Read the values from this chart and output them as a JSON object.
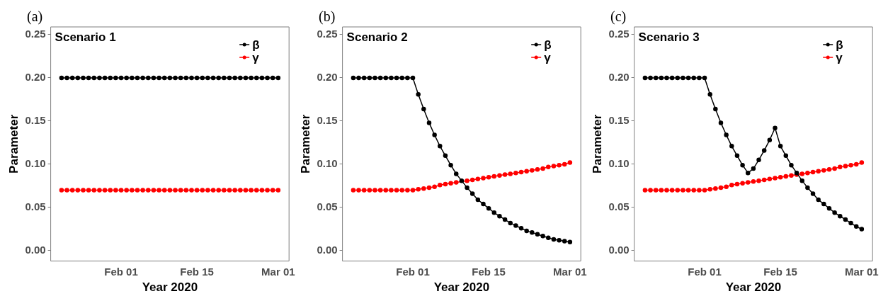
{
  "chart_data": [
    {
      "type": "line",
      "title": "Scenario 1",
      "annotations": [
        "(a)"
      ],
      "xlabel": "Year 2020",
      "ylabel": "Parameter",
      "legend": "top right",
      "grid": false,
      "marker": "circle",
      "line_style": "solid",
      "xlim": [
        "2020-01-19",
        "2020-03-03"
      ],
      "xticks": [
        {
          "value": "2020-02-01",
          "label": "Feb 01"
        },
        {
          "value": "2020-02-15",
          "label": "Feb 15"
        },
        {
          "value": "2020-03-01",
          "label": "Mar 01"
        }
      ],
      "ylim": [
        -0.012,
        0.259
      ],
      "yticks": [
        {
          "value": 0,
          "label": "0.00"
        },
        {
          "value": 0.05,
          "label": "0.05"
        },
        {
          "value": 0.1,
          "label": "0.10"
        },
        {
          "value": 0.15,
          "label": "0.15"
        },
        {
          "value": 0.2,
          "label": "0.20"
        },
        {
          "value": 0.25,
          "label": "0.25"
        }
      ],
      "x": [
        "2020-01-21",
        "2020-01-22",
        "2020-01-23",
        "2020-01-24",
        "2020-01-25",
        "2020-01-26",
        "2020-01-27",
        "2020-01-28",
        "2020-01-29",
        "2020-01-30",
        "2020-01-31",
        "2020-02-01",
        "2020-02-02",
        "2020-02-03",
        "2020-02-04",
        "2020-02-05",
        "2020-02-06",
        "2020-02-07",
        "2020-02-08",
        "2020-02-09",
        "2020-02-10",
        "2020-02-11",
        "2020-02-12",
        "2020-02-13",
        "2020-02-14",
        "2020-02-15",
        "2020-02-16",
        "2020-02-17",
        "2020-02-18",
        "2020-02-19",
        "2020-02-20",
        "2020-02-21",
        "2020-02-22",
        "2020-02-23",
        "2020-02-24",
        "2020-02-25",
        "2020-02-26",
        "2020-02-27",
        "2020-02-28",
        "2020-02-29",
        "2020-03-01"
      ],
      "series": [
        {
          "name": "β",
          "color": "#000000",
          "values": [
            0.2,
            0.2,
            0.2,
            0.2,
            0.2,
            0.2,
            0.2,
            0.2,
            0.2,
            0.2,
            0.2,
            0.2,
            0.2,
            0.2,
            0.2,
            0.2,
            0.2,
            0.2,
            0.2,
            0.2,
            0.2,
            0.2,
            0.2,
            0.2,
            0.2,
            0.2,
            0.2,
            0.2,
            0.2,
            0.2,
            0.2,
            0.2,
            0.2,
            0.2,
            0.2,
            0.2,
            0.2,
            0.2,
            0.2,
            0.2,
            0.2
          ]
        },
        {
          "name": "γ",
          "color": "#ff0000",
          "values": [
            0.07,
            0.07,
            0.07,
            0.07,
            0.07,
            0.07,
            0.07,
            0.07,
            0.07,
            0.07,
            0.07,
            0.07,
            0.07,
            0.07,
            0.07,
            0.07,
            0.07,
            0.07,
            0.07,
            0.07,
            0.07,
            0.07,
            0.07,
            0.07,
            0.07,
            0.07,
            0.07,
            0.07,
            0.07,
            0.07,
            0.07,
            0.07,
            0.07,
            0.07,
            0.07,
            0.07,
            0.07,
            0.07,
            0.07,
            0.07,
            0.07
          ]
        }
      ]
    },
    {
      "type": "line",
      "title": "Scenario 2",
      "annotations": [
        "(b)"
      ],
      "xlabel": "Year 2020",
      "ylabel": "Parameter",
      "legend": "top right",
      "grid": false,
      "marker": "circle",
      "line_style": "solid",
      "xlim": [
        "2020-01-19",
        "2020-03-03"
      ],
      "xticks": [
        {
          "value": "2020-02-01",
          "label": "Feb 01"
        },
        {
          "value": "2020-02-15",
          "label": "Feb 15"
        },
        {
          "value": "2020-03-01",
          "label": "Mar 01"
        }
      ],
      "ylim": [
        -0.012,
        0.259
      ],
      "yticks": [
        {
          "value": 0,
          "label": "0.00"
        },
        {
          "value": 0.05,
          "label": "0.05"
        },
        {
          "value": 0.1,
          "label": "0.10"
        },
        {
          "value": 0.15,
          "label": "0.15"
        },
        {
          "value": 0.2,
          "label": "0.20"
        },
        {
          "value": 0.25,
          "label": "0.25"
        }
      ],
      "x": [
        "2020-01-21",
        "2020-01-22",
        "2020-01-23",
        "2020-01-24",
        "2020-01-25",
        "2020-01-26",
        "2020-01-27",
        "2020-01-28",
        "2020-01-29",
        "2020-01-30",
        "2020-01-31",
        "2020-02-01",
        "2020-02-02",
        "2020-02-03",
        "2020-02-04",
        "2020-02-05",
        "2020-02-06",
        "2020-02-07",
        "2020-02-08",
        "2020-02-09",
        "2020-02-10",
        "2020-02-11",
        "2020-02-12",
        "2020-02-13",
        "2020-02-14",
        "2020-02-15",
        "2020-02-16",
        "2020-02-17",
        "2020-02-18",
        "2020-02-19",
        "2020-02-20",
        "2020-02-21",
        "2020-02-22",
        "2020-02-23",
        "2020-02-24",
        "2020-02-25",
        "2020-02-26",
        "2020-02-27",
        "2020-02-28",
        "2020-02-29",
        "2020-03-01"
      ],
      "series": [
        {
          "name": "β",
          "color": "#000000",
          "values": [
            0.2,
            0.2,
            0.2,
            0.2,
            0.2,
            0.2,
            0.2,
            0.2,
            0.2,
            0.2,
            0.2,
            0.2,
            0.181,
            0.164,
            0.148,
            0.134,
            0.121,
            0.11,
            0.099,
            0.089,
            0.081,
            0.073,
            0.066,
            0.059,
            0.054,
            0.049,
            0.044,
            0.04,
            0.036,
            0.032,
            0.029,
            0.026,
            0.023,
            0.021,
            0.019,
            0.017,
            0.015,
            0.013,
            0.012,
            0.011,
            0.01
          ]
        },
        {
          "name": "γ",
          "color": "#ff0000",
          "values": [
            0.07,
            0.07,
            0.07,
            0.07,
            0.07,
            0.07,
            0.07,
            0.07,
            0.07,
            0.07,
            0.07,
            0.07,
            0.071,
            0.072,
            0.073,
            0.074,
            0.076,
            0.077,
            0.078,
            0.079,
            null,
            0.081,
            0.082,
            0.083,
            0.084,
            0.085,
            0.086,
            0.087,
            0.088,
            0.089,
            0.09,
            0.091,
            0.092,
            0.093,
            0.094,
            0.095,
            0.097,
            0.098,
            0.099,
            0.1,
            0.102
          ]
        }
      ]
    },
    {
      "type": "line",
      "title": "Scenario 3",
      "annotations": [
        "(c)"
      ],
      "xlabel": "Year 2020",
      "ylabel": "Parameter",
      "legend": "top right",
      "grid": false,
      "marker": "circle",
      "line_style": "solid",
      "xlim": [
        "2020-01-19",
        "2020-03-03"
      ],
      "xticks": [
        {
          "value": "2020-02-01",
          "label": "Feb 01"
        },
        {
          "value": "2020-02-15",
          "label": "Feb 15"
        },
        {
          "value": "2020-03-01",
          "label": "Mar 01"
        }
      ],
      "ylim": [
        -0.012,
        0.259
      ],
      "yticks": [
        {
          "value": 0,
          "label": "0.00"
        },
        {
          "value": 0.05,
          "label": "0.05"
        },
        {
          "value": 0.1,
          "label": "0.10"
        },
        {
          "value": 0.15,
          "label": "0.15"
        },
        {
          "value": 0.2,
          "label": "0.20"
        },
        {
          "value": 0.25,
          "label": "0.25"
        }
      ],
      "x": [
        "2020-01-21",
        "2020-01-22",
        "2020-01-23",
        "2020-01-24",
        "2020-01-25",
        "2020-01-26",
        "2020-01-27",
        "2020-01-28",
        "2020-01-29",
        "2020-01-30",
        "2020-01-31",
        "2020-02-01",
        "2020-02-02",
        "2020-02-03",
        "2020-02-04",
        "2020-02-05",
        "2020-02-06",
        "2020-02-07",
        "2020-02-08",
        "2020-02-09",
        "2020-02-10",
        "2020-02-11",
        "2020-02-12",
        "2020-02-13",
        "2020-02-14",
        "2020-02-15",
        "2020-02-16",
        "2020-02-17",
        "2020-02-18",
        "2020-02-19",
        "2020-02-20",
        "2020-02-21",
        "2020-02-22",
        "2020-02-23",
        "2020-02-24",
        "2020-02-25",
        "2020-02-26",
        "2020-02-27",
        "2020-02-28",
        "2020-02-29",
        "2020-03-01"
      ],
      "series": [
        {
          "name": "β",
          "color": "#000000",
          "values": [
            0.2,
            0.2,
            0.2,
            0.2,
            0.2,
            0.2,
            0.2,
            0.2,
            0.2,
            0.2,
            0.2,
            0.2,
            0.181,
            0.164,
            0.148,
            0.134,
            0.121,
            0.11,
            0.099,
            0.09,
            0.095,
            0.105,
            0.116,
            0.128,
            0.142,
            0.121,
            0.11,
            0.099,
            0.09,
            0.081,
            0.073,
            0.066,
            0.059,
            0.054,
            0.049,
            0.044,
            0.04,
            0.036,
            0.032,
            0.028,
            0.025
          ]
        },
        {
          "name": "γ",
          "color": "#ff0000",
          "values": [
            0.07,
            0.07,
            0.07,
            0.07,
            0.07,
            0.07,
            0.07,
            0.07,
            0.07,
            0.07,
            0.07,
            0.07,
            0.071,
            0.072,
            0.073,
            0.074,
            0.076,
            0.077,
            0.078,
            0.079,
            0.08,
            0.081,
            0.082,
            0.083,
            0.084,
            0.085,
            0.086,
            0.087,
            0.088,
            0.089,
            0.09,
            0.091,
            0.092,
            0.093,
            0.094,
            0.095,
            0.097,
            0.098,
            0.099,
            0.1,
            0.102
          ]
        }
      ]
    }
  ]
}
